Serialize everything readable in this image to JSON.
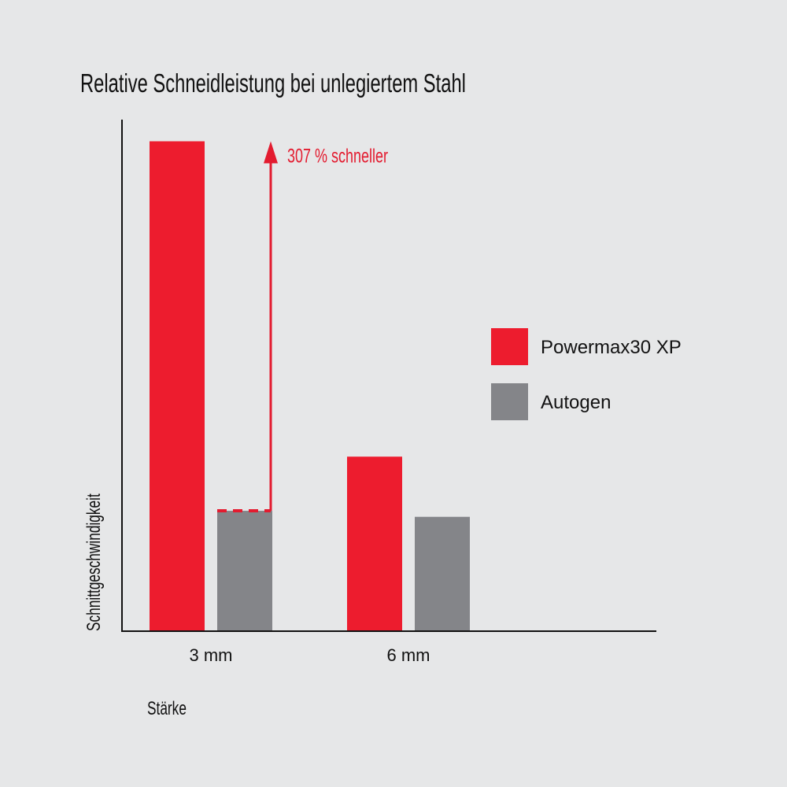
{
  "chart_data": {
    "type": "bar",
    "title": "Relative Schneidleistung bei unlegiertem Stahl",
    "xlabel": "Stärke",
    "ylabel": "Schnittgeschwindigkeit",
    "categories": [
      "3 mm",
      "6 mm"
    ],
    "series": [
      {
        "name": "Powermax30 XP",
        "color": "#ed1c2e",
        "values": [
          4.07,
          1.45
        ]
      },
      {
        "name": "Autogen",
        "color": "#848589",
        "values": [
          1.0,
          0.95
        ]
      }
    ],
    "ylim": [
      0,
      4.25
    ],
    "grid": false,
    "legend_position": "right",
    "annotation": {
      "text": "307 % schneller",
      "color": "#e31b2f",
      "category": "3 mm"
    }
  }
}
